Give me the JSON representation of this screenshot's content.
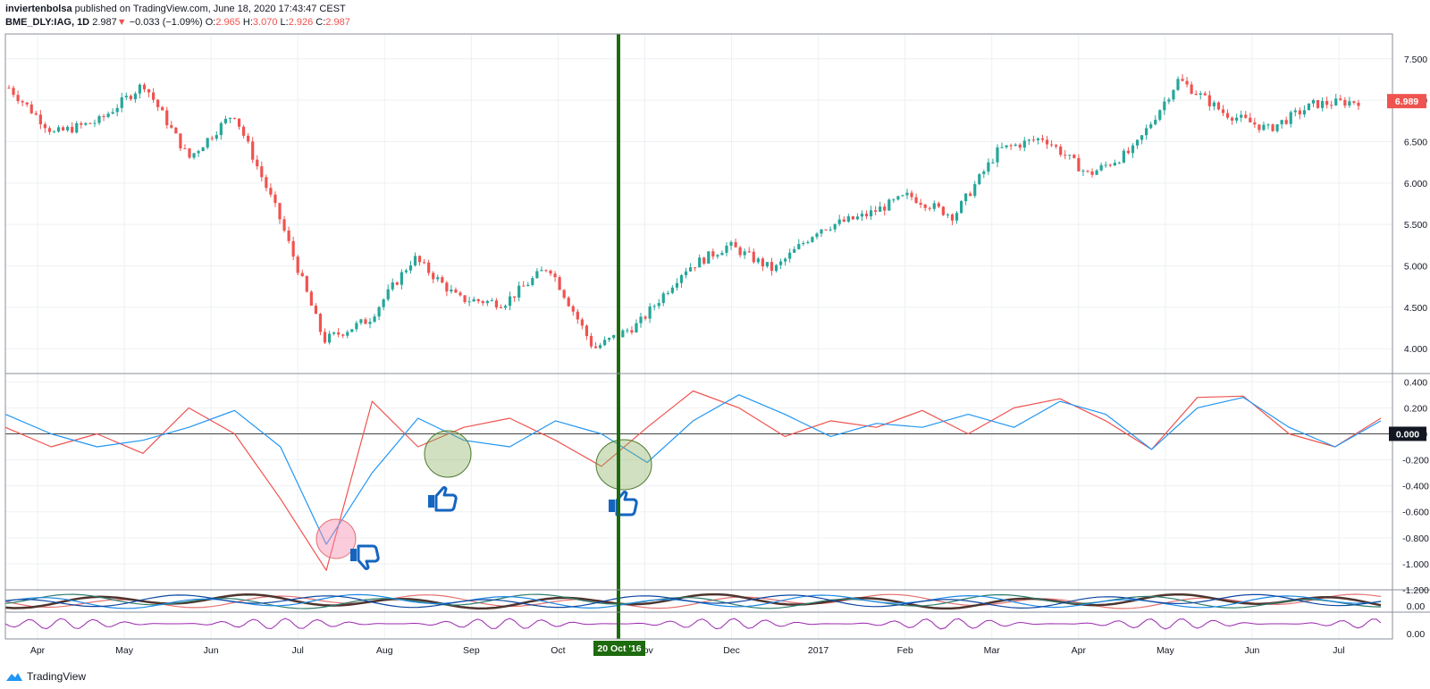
{
  "header": {
    "author": "inviertenbolsa",
    "published": "published on TradingView.com, June 18, 2020 17:43:47 CEST",
    "symbol": "BME_DLY:IAG, 1D",
    "last": "2.987",
    "change": "−0.033 (−1.09%)",
    "o_label": "O:",
    "o": "2.965",
    "h_label": "H:",
    "h": "3.070",
    "l_label": "L:",
    "l": "2.926",
    "c_label": "C:",
    "c": "2.987"
  },
  "footer": {
    "brand": "TradingView"
  },
  "colors": {
    "up": "#26a69a",
    "down": "#ef5350",
    "signal": "#2196f3",
    "marker": "#1e6b0f"
  },
  "icons": [
    "thumbs-up-icon",
    "thumbs-up-icon",
    "thumbs-down-icon",
    "tradingview-logo-icon"
  ],
  "chart_data": [
    {
      "type": "candlestick",
      "title": "",
      "price_axis_ticks": [
        "7.500",
        "7.000",
        "6.500",
        "6.000",
        "5.500",
        "5.000",
        "4.500",
        "4.000"
      ],
      "last_price_label": "6.989",
      "ylim": [
        3.7,
        7.8
      ],
      "time_axis_ticks": [
        "Apr",
        "May",
        "Jun",
        "Jul",
        "Aug",
        "Sep",
        "Oct",
        "Nov",
        "Dec",
        "2017",
        "Feb",
        "Mar",
        "Apr",
        "May",
        "Jun",
        "Jul"
      ],
      "x": [
        "2016-04-01",
        "2016-04-20",
        "2016-05-10",
        "2016-06-01",
        "2016-06-15",
        "2016-06-23",
        "2016-06-24",
        "2016-06-27",
        "2016-07-06",
        "2016-07-20",
        "2016-08-10",
        "2016-09-01",
        "2016-09-15",
        "2016-10-06",
        "2016-10-20",
        "2016-11-01",
        "2016-11-20",
        "2016-12-01",
        "2016-12-20",
        "2017-01-10",
        "2017-02-01",
        "2017-02-15",
        "2017-03-05",
        "2017-03-20",
        "2017-04-05",
        "2017-04-20",
        "2017-05-10",
        "2017-05-25",
        "2017-06-15",
        "2017-07-01",
        "2017-07-18"
      ],
      "close": [
        7.15,
        6.6,
        6.75,
        7.2,
        6.3,
        6.85,
        5.6,
        4.1,
        4.35,
        5.1,
        4.6,
        4.55,
        5.0,
        4.0,
        4.3,
        4.95,
        5.25,
        4.95,
        5.45,
        5.6,
        5.85,
        5.6,
        6.4,
        6.55,
        6.1,
        6.4,
        7.25,
        6.85,
        6.65,
        6.95,
        6.99
      ]
    },
    {
      "type": "line",
      "price_axis_ticks": [
        "0.400",
        "0.200",
        "0.000",
        "-0.200",
        "-0.400",
        "-0.600",
        "-0.800",
        "-1.000",
        "-1.200"
      ],
      "last_value_label": "0.000",
      "ylim": [
        -1.2,
        0.45
      ],
      "series": [
        {
          "values": [
            0.05,
            -0.1,
            0.0,
            -0.15,
            0.2,
            0.0,
            -0.5,
            -1.05,
            0.25,
            -0.1,
            0.05,
            0.12,
            -0.05,
            -0.25,
            0.05,
            0.33,
            0.2,
            -0.02,
            0.1,
            0.05,
            0.18,
            0.0,
            0.2,
            0.27,
            0.1,
            -0.12,
            0.28,
            0.29,
            0.0,
            -0.1,
            0.12
          ]
        },
        {
          "values": [
            0.15,
            0.0,
            -0.1,
            -0.05,
            0.05,
            0.18,
            -0.1,
            -0.85,
            -0.3,
            0.12,
            -0.05,
            -0.1,
            0.1,
            0.0,
            -0.22,
            0.1,
            0.3,
            0.15,
            -0.02,
            0.08,
            0.05,
            0.15,
            0.05,
            0.25,
            0.15,
            -0.12,
            0.2,
            0.28,
            0.05,
            -0.1,
            0.1
          ]
        }
      ],
      "annotation_date": "20 Oct '16"
    },
    {
      "type": "line",
      "price_axis_ticks": [
        "0.00"
      ],
      "series_count": 5
    },
    {
      "type": "line",
      "price_axis_ticks": [
        "0.00"
      ],
      "series_count": 1
    }
  ]
}
